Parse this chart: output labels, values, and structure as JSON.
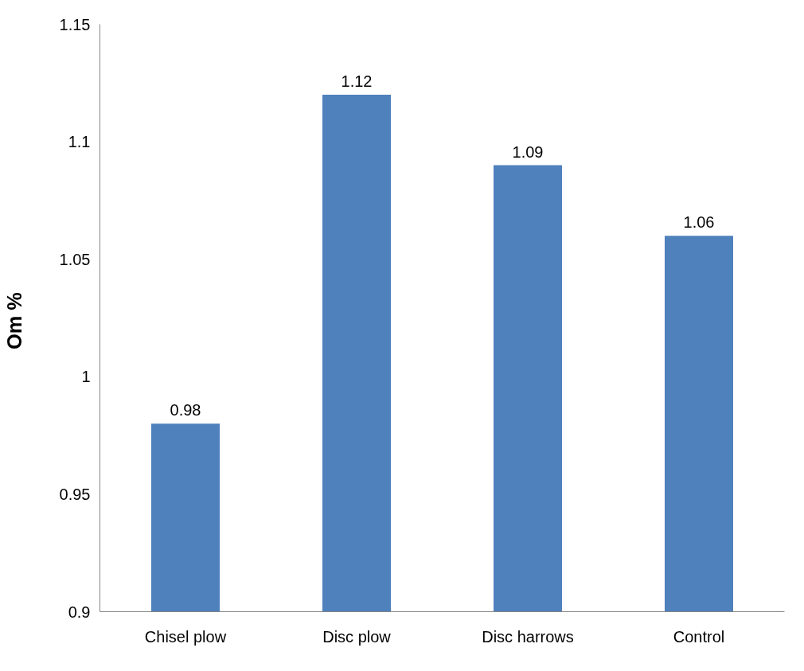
{
  "chart_data": {
    "type": "bar",
    "ylabel": "Om  %",
    "categories": [
      "Chisel plow",
      "Disc plow",
      "Disc harrows",
      "Control"
    ],
    "values": [
      0.98,
      1.12,
      1.09,
      1.06
    ],
    "color": "#4f81bd",
    "ylim": [
      0.9,
      1.15
    ],
    "yticks": [
      0.9,
      0.95,
      1,
      1.05,
      1.1,
      1.15
    ],
    "data_labels": true,
    "grid": false
  }
}
